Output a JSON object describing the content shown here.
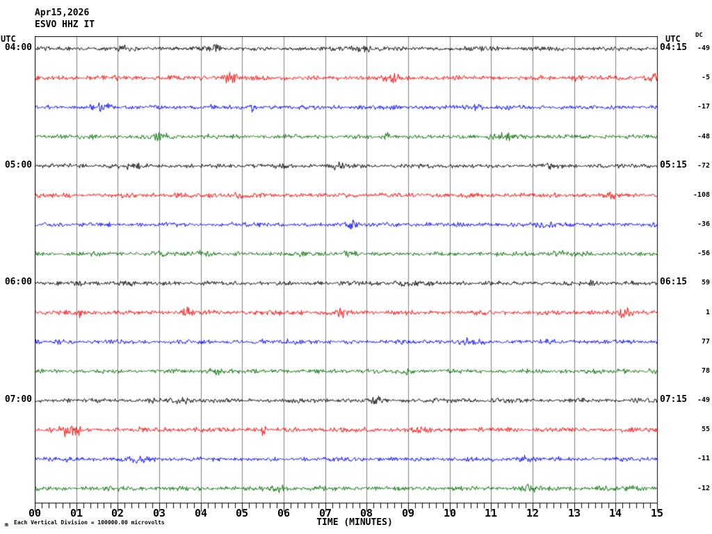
{
  "header": {
    "date": "Apr15,2026",
    "station": "ESVO HHZ IT"
  },
  "left_axis": {
    "header": "UTC"
  },
  "right_axis": {
    "header": "UTC",
    "dc_header": "DC"
  },
  "x_axis": {
    "title": "TIME (MINUTES)",
    "tick_labels": [
      "00",
      "01",
      "02",
      "03",
      "04",
      "05",
      "06",
      "07",
      "08",
      "09",
      "10",
      "11",
      "12",
      "13",
      "14",
      "15"
    ],
    "minor_ticks_per_minute": 6
  },
  "footer": {
    "scale_note": "Each Vertical Division = 100000.00 microvolts",
    "scale_marker": "m"
  },
  "colors": {
    "trace_cycle": [
      "#000000",
      "#ff0000",
      "#0000ff",
      "#006f00"
    ],
    "grid": "#808080",
    "frame": "#000000",
    "background": "#ffffff"
  },
  "chart_data": {
    "type": "line",
    "title": "ESVO HHZ IT helicorder — Apr15,2026",
    "xlabel": "TIME (MINUTES)",
    "ylabel": "UTC (15-minute rows)",
    "x_range": [
      0,
      15
    ],
    "minutes_per_row": 15,
    "grid": "vertical minute lines",
    "vertical_division_microvolts": 100000.0,
    "rows": [
      {
        "start_utc": "04:00",
        "end_utc": "04:15",
        "left_label": "04:00",
        "right_label": "04:15",
        "color": "black",
        "dc": -49,
        "noise_amp": 2.2,
        "bursts": [
          {
            "m": 2.1,
            "a": 1.2,
            "w": 0.15
          },
          {
            "m": 4.3,
            "a": 1.5,
            "w": 0.12
          },
          {
            "m": 7.9,
            "a": 1.3,
            "w": 0.2
          },
          {
            "m": 10.9,
            "a": 1.0,
            "w": 0.15
          }
        ]
      },
      {
        "start_utc": "04:15",
        "end_utc": "04:30",
        "left_label": "",
        "right_label": "",
        "color": "red",
        "dc": -5,
        "noise_amp": 2.4,
        "bursts": [
          {
            "m": 4.7,
            "a": 2.2,
            "w": 0.12
          },
          {
            "m": 8.6,
            "a": 1.0,
            "w": 0.15
          },
          {
            "m": 13.1,
            "a": 0.8,
            "w": 0.1
          },
          {
            "m": 14.85,
            "a": 2.0,
            "w": 0.08
          }
        ]
      },
      {
        "start_utc": "04:30",
        "end_utc": "04:45",
        "left_label": "",
        "right_label": "",
        "color": "blue",
        "dc": -17,
        "noise_amp": 2.2,
        "bursts": [
          {
            "m": 1.6,
            "a": 1.2,
            "w": 0.2
          },
          {
            "m": 4.25,
            "a": 2.0,
            "w": 0.05
          },
          {
            "m": 5.2,
            "a": 1.5,
            "w": 0.07
          },
          {
            "m": 10.6,
            "a": 1.0,
            "w": 0.15
          }
        ]
      },
      {
        "start_utc": "04:45",
        "end_utc": "05:00",
        "left_label": "",
        "right_label": "",
        "color": "green",
        "dc": -48,
        "noise_amp": 2.2,
        "bursts": [
          {
            "m": 3.0,
            "a": 1.2,
            "w": 0.15
          },
          {
            "m": 8.45,
            "a": 2.2,
            "w": 0.06
          },
          {
            "m": 11.3,
            "a": 1.0,
            "w": 0.2
          }
        ]
      },
      {
        "start_utc": "05:00",
        "end_utc": "05:15",
        "left_label": "05:00",
        "right_label": "05:15",
        "color": "black",
        "dc": -72,
        "noise_amp": 2.2,
        "bursts": [
          {
            "m": 2.3,
            "a": 1.0,
            "w": 0.2
          },
          {
            "m": 7.3,
            "a": 0.9,
            "w": 0.15
          },
          {
            "m": 12.4,
            "a": 0.8,
            "w": 0.12
          }
        ]
      },
      {
        "start_utc": "05:15",
        "end_utc": "05:30",
        "left_label": "",
        "right_label": "",
        "color": "red",
        "dc": -108,
        "noise_amp": 2.3,
        "bursts": [
          {
            "m": 5.0,
            "a": 0.8,
            "w": 0.2
          },
          {
            "m": 13.9,
            "a": 1.2,
            "w": 0.1
          }
        ]
      },
      {
        "start_utc": "05:30",
        "end_utc": "05:45",
        "left_label": "",
        "right_label": "",
        "color": "blue",
        "dc": -36,
        "noise_amp": 2.2,
        "bursts": [
          {
            "m": 7.65,
            "a": 2.3,
            "w": 0.1
          },
          {
            "m": 12.3,
            "a": 0.8,
            "w": 0.2
          }
        ]
      },
      {
        "start_utc": "05:45",
        "end_utc": "06:00",
        "left_label": "",
        "right_label": "",
        "color": "green",
        "dc": -56,
        "noise_amp": 2.2,
        "bursts": [
          {
            "m": 4.0,
            "a": 1.1,
            "w": 0.15
          },
          {
            "m": 7.5,
            "a": 1.4,
            "w": 0.1
          },
          {
            "m": 12.6,
            "a": 1.1,
            "w": 0.12
          }
        ]
      },
      {
        "start_utc": "06:00",
        "end_utc": "06:15",
        "left_label": "06:00",
        "right_label": "06:15",
        "color": "black",
        "dc": 59,
        "noise_amp": 2.2,
        "bursts": [
          {
            "m": 2.2,
            "a": 1.0,
            "w": 0.15
          },
          {
            "m": 9.0,
            "a": 0.8,
            "w": 0.2
          },
          {
            "m": 13.4,
            "a": 1.0,
            "w": 0.12
          }
        ]
      },
      {
        "start_utc": "06:15",
        "end_utc": "06:30",
        "left_label": "",
        "right_label": "",
        "color": "red",
        "dc": 1,
        "noise_amp": 2.4,
        "bursts": [
          {
            "m": 1.1,
            "a": 2.5,
            "w": 0.03
          },
          {
            "m": 3.7,
            "a": 1.5,
            "w": 0.1
          },
          {
            "m": 7.4,
            "a": 1.3,
            "w": 0.1
          },
          {
            "m": 14.2,
            "a": 2.0,
            "w": 0.1
          }
        ]
      },
      {
        "start_utc": "06:30",
        "end_utc": "06:45",
        "left_label": "",
        "right_label": "",
        "color": "blue",
        "dc": 77,
        "noise_amp": 2.2,
        "bursts": [
          {
            "m": 6.2,
            "a": 0.8,
            "w": 0.2
          },
          {
            "m": 10.5,
            "a": 0.9,
            "w": 0.15
          }
        ]
      },
      {
        "start_utc": "06:45",
        "end_utc": "07:00",
        "left_label": "",
        "right_label": "",
        "color": "green",
        "dc": 78,
        "noise_amp": 2.2,
        "bursts": [
          {
            "m": 4.3,
            "a": 1.2,
            "w": 0.12
          },
          {
            "m": 9.0,
            "a": 1.3,
            "w": 0.1
          },
          {
            "m": 14.0,
            "a": 0.8,
            "w": 0.15
          }
        ]
      },
      {
        "start_utc": "07:00",
        "end_utc": "07:15",
        "left_label": "07:00",
        "right_label": "07:15",
        "color": "black",
        "dc": -49,
        "noise_amp": 2.2,
        "bursts": [
          {
            "m": 3.5,
            "a": 0.9,
            "w": 0.2
          },
          {
            "m": 8.2,
            "a": 0.8,
            "w": 0.15
          }
        ]
      },
      {
        "start_utc": "07:15",
        "end_utc": "07:30",
        "left_label": "",
        "right_label": "",
        "color": "red",
        "dc": 55,
        "noise_amp": 2.4,
        "bursts": [
          {
            "m": 0.8,
            "a": 1.8,
            "w": 0.25
          },
          {
            "m": 5.5,
            "a": 2.2,
            "w": 0.04
          },
          {
            "m": 9.3,
            "a": 0.9,
            "w": 0.15
          }
        ]
      },
      {
        "start_utc": "07:30",
        "end_utc": "07:45",
        "left_label": "",
        "right_label": "",
        "color": "blue",
        "dc": -11,
        "noise_amp": 2.2,
        "bursts": [
          {
            "m": 2.5,
            "a": 0.9,
            "w": 0.2
          },
          {
            "m": 11.8,
            "a": 1.0,
            "w": 0.15
          }
        ]
      },
      {
        "start_utc": "07:45",
        "end_utc": "08:00",
        "left_label": "",
        "right_label": "",
        "color": "green",
        "dc": -12,
        "noise_amp": 2.3,
        "bursts": [
          {
            "m": 5.85,
            "a": 2.2,
            "w": 0.09
          },
          {
            "m": 11.9,
            "a": 1.0,
            "w": 0.15
          },
          {
            "m": 14.5,
            "a": 1.3,
            "w": 0.1
          }
        ]
      }
    ]
  }
}
